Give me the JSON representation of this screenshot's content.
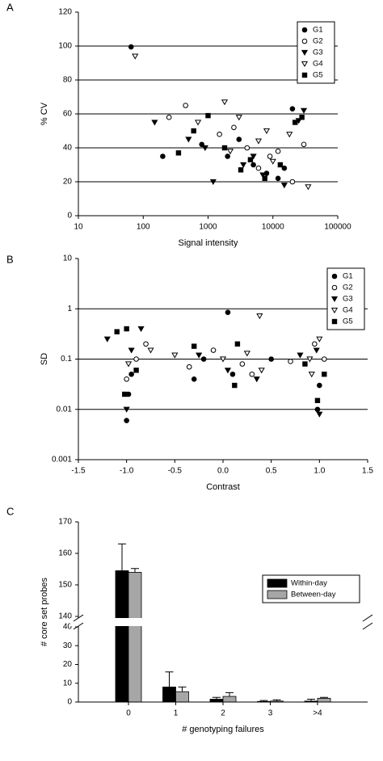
{
  "chart_data": [
    {
      "type": "scatter",
      "panel": "A",
      "x_label": "Signal intensity",
      "y_label": "% CV",
      "xlog": true,
      "xlim": [
        10,
        100000
      ],
      "xticks": [
        10,
        100,
        1000,
        10000,
        100000
      ],
      "ylim": [
        0,
        120
      ],
      "yticks": [
        0,
        20,
        40,
        60,
        80,
        100,
        120
      ],
      "grid": true,
      "legend": "upper right",
      "series": [
        {
          "name": "G1",
          "color": "#000000",
          "marker": "circle",
          "x": [
            65,
            200,
            800,
            2000,
            5000,
            8000,
            12000,
            20000,
            3000,
            15000
          ],
          "y": [
            99.5,
            35,
            42,
            35,
            30,
            25,
            22,
            63,
            45,
            28
          ]
        },
        {
          "name": "G2",
          "color": "#000000",
          "marker": "circle-open",
          "x": [
            450,
            250,
            1500,
            4000,
            9000,
            20000,
            30000,
            6000,
            12000,
            2500
          ],
          "y": [
            65,
            58,
            48,
            40,
            35,
            20,
            42,
            28,
            38,
            52
          ]
        },
        {
          "name": "G3",
          "color": "#000000",
          "marker": "triangle-down",
          "x": [
            150,
            500,
            1200,
            3500,
            7000,
            15000,
            30000,
            25000,
            900,
            5000
          ],
          "y": [
            55,
            45,
            20,
            30,
            24,
            18,
            62,
            56,
            40,
            35
          ]
        },
        {
          "name": "G4",
          "color": "#000000",
          "marker": "triangle-down-open",
          "x": [
            75,
            700,
            1800,
            3000,
            6000,
            10000,
            18000,
            35000,
            2200,
            8000
          ],
          "y": [
            94,
            55,
            67,
            58,
            44,
            32,
            48,
            17,
            38,
            50
          ]
        },
        {
          "name": "G5",
          "color": "#000000",
          "marker": "square",
          "x": [
            350,
            1000,
            1800,
            4500,
            7500,
            13000,
            22000,
            28000,
            600,
            3200
          ],
          "y": [
            37,
            59,
            40,
            33,
            22,
            30,
            55,
            58,
            50,
            27
          ]
        }
      ]
    },
    {
      "type": "scatter",
      "panel": "B",
      "x_label": "Contrast",
      "y_label": "SD",
      "ylog": true,
      "xlim": [
        -1.5,
        1.5
      ],
      "xticks": [
        -1.5,
        {
          "value": -1,
          "label": "-1.0"
        },
        -0.5,
        {
          "value": 0,
          "label": "0.0"
        },
        0.5,
        {
          "value": 1,
          "label": "1.0"
        },
        1.5
      ],
      "ylim": [
        0.001,
        10
      ],
      "yticks": [
        0.001,
        0.01,
        0.1,
        1,
        10
      ],
      "grid": true,
      "legend": "upper right",
      "series": [
        {
          "name": "G1",
          "color": "#000000",
          "marker": "circle",
          "x": [
            -1,
            -0.98,
            -0.95,
            -0.3,
            0.05,
            0.1,
            0.5,
            0.98,
            1.0,
            -0.2
          ],
          "y": [
            0.006,
            0.02,
            0.05,
            0.04,
            0.85,
            0.05,
            0.1,
            0.01,
            0.03,
            0.1
          ]
        },
        {
          "name": "G2",
          "color": "#000000",
          "marker": "circle-open",
          "x": [
            -0.8,
            -0.9,
            -0.35,
            -0.1,
            0.2,
            0.3,
            0.7,
            0.95,
            1.05,
            -1.0
          ],
          "y": [
            0.2,
            0.1,
            0.07,
            0.15,
            0.08,
            0.05,
            0.09,
            0.2,
            0.1,
            0.04
          ]
        },
        {
          "name": "G3",
          "color": "#000000",
          "marker": "triangle-down",
          "x": [
            -1.2,
            -0.85,
            -1,
            -0.25,
            0.05,
            0.35,
            0.8,
            0.97,
            1,
            -0.95
          ],
          "y": [
            0.25,
            0.4,
            0.01,
            0.12,
            0.06,
            0.04,
            0.12,
            0.15,
            0.008,
            0.15
          ]
        },
        {
          "name": "G4",
          "color": "#000000",
          "marker": "triangle-down-open",
          "x": [
            -0.75,
            -0.5,
            0.0,
            0.38,
            0.25,
            0.4,
            1.0,
            0.92,
            -0.98,
            0.9
          ],
          "y": [
            0.15,
            0.12,
            0.1,
            0.72,
            0.13,
            0.06,
            0.25,
            0.05,
            0.08,
            0.1
          ]
        },
        {
          "name": "G5",
          "color": "#000000",
          "marker": "square",
          "x": [
            -1.1,
            -1.0,
            -1.02,
            -0.3,
            0.15,
            0.12,
            0.85,
            1.05,
            0.98,
            -0.9
          ],
          "y": [
            0.35,
            0.4,
            0.02,
            0.18,
            0.2,
            0.03,
            0.08,
            0.05,
            0.015,
            0.06
          ]
        }
      ]
    },
    {
      "type": "bar",
      "panel": "C",
      "x_label": "# genotyping failures",
      "y_label": "# core set probes",
      "categories": [
        "0",
        "1",
        "2",
        "3",
        ">4"
      ],
      "ylim": [
        0,
        170
      ],
      "axis_break": [
        40,
        140
      ],
      "yticks": [
        0,
        10,
        20,
        30,
        40,
        140,
        150,
        160,
        170
      ],
      "legend": "upper right",
      "series": [
        {
          "name": "Within-day",
          "color": "#000000",
          "values": [
            154.5,
            8,
            1.5,
            0.3,
            0.5
          ],
          "errors": [
            8.5,
            8,
            1,
            0.5,
            1
          ]
        },
        {
          "name": "Between-day",
          "color": "#a6a6a6",
          "values": [
            154,
            5.5,
            3,
            0.5,
            2
          ],
          "errors": [
            1.2,
            2.5,
            2,
            0.7,
            0.5
          ]
        }
      ]
    }
  ]
}
